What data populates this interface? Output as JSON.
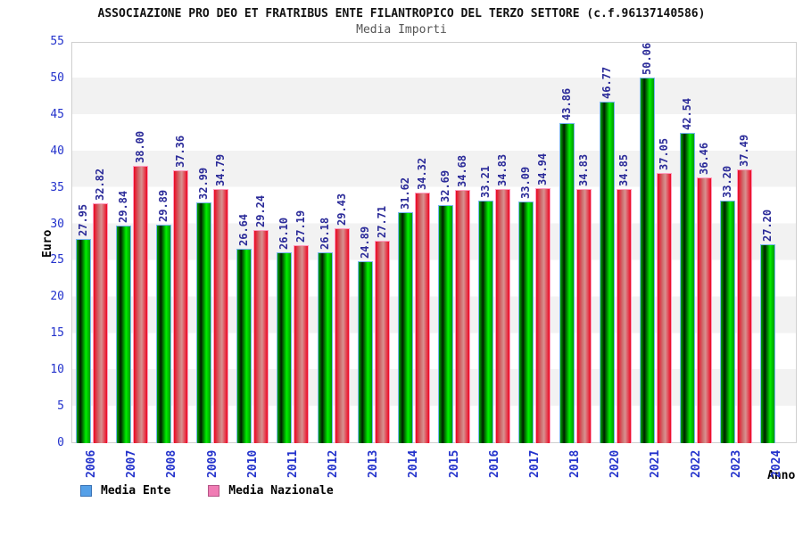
{
  "header": {
    "title": "ASSOCIAZIONE PRO DEO ET FRATRIBUS ENTE FILANTROPICO DEL TERZO SETTORE (c.f.96137140586)",
    "subtitle": "Media Importi"
  },
  "chart_data": {
    "type": "bar",
    "categories": [
      "2006",
      "2007",
      "2008",
      "2009",
      "2010",
      "2011",
      "2012",
      "2013",
      "2014",
      "2015",
      "2016",
      "2017",
      "2018",
      "2020",
      "2021",
      "2022",
      "2023",
      "2024"
    ],
    "series": [
      {
        "name": "Media Ente",
        "values": [
          27.95,
          29.84,
          29.89,
          32.99,
          26.64,
          26.1,
          26.18,
          24.89,
          31.62,
          32.69,
          33.21,
          33.09,
          43.86,
          46.77,
          50.06,
          42.54,
          33.2,
          27.2
        ]
      },
      {
        "name": "Media Nazionale",
        "values": [
          32.82,
          38.0,
          37.36,
          34.79,
          29.24,
          27.19,
          29.43,
          27.71,
          34.32,
          34.68,
          34.83,
          34.94,
          34.83,
          34.85,
          37.05,
          36.46,
          37.49,
          null
        ]
      }
    ],
    "title": "Media Importi",
    "xlabel": "Anno",
    "ylabel": "Euro",
    "ylim": [
      0,
      55
    ],
    "ytick_step": 5,
    "grid": "alternating-horizontal-bands",
    "legend_position": "bottom-left",
    "bar_value_labels": "rotated-90-above-bars"
  },
  "legend": {
    "items": [
      {
        "label": "Media Ente",
        "swatch_color": "#55A0E8"
      },
      {
        "label": "Media Nazionale",
        "swatch_color": "#F07CB4"
      }
    ]
  },
  "colors": {
    "ente_bar_main": "#00CC00",
    "nazionale_bar_main": "#EC0822",
    "axis_text": "#2433CC",
    "value_label": "#2B2B99",
    "band_gray": "#F2F2F2",
    "plot_border": "#CFCFCF"
  }
}
